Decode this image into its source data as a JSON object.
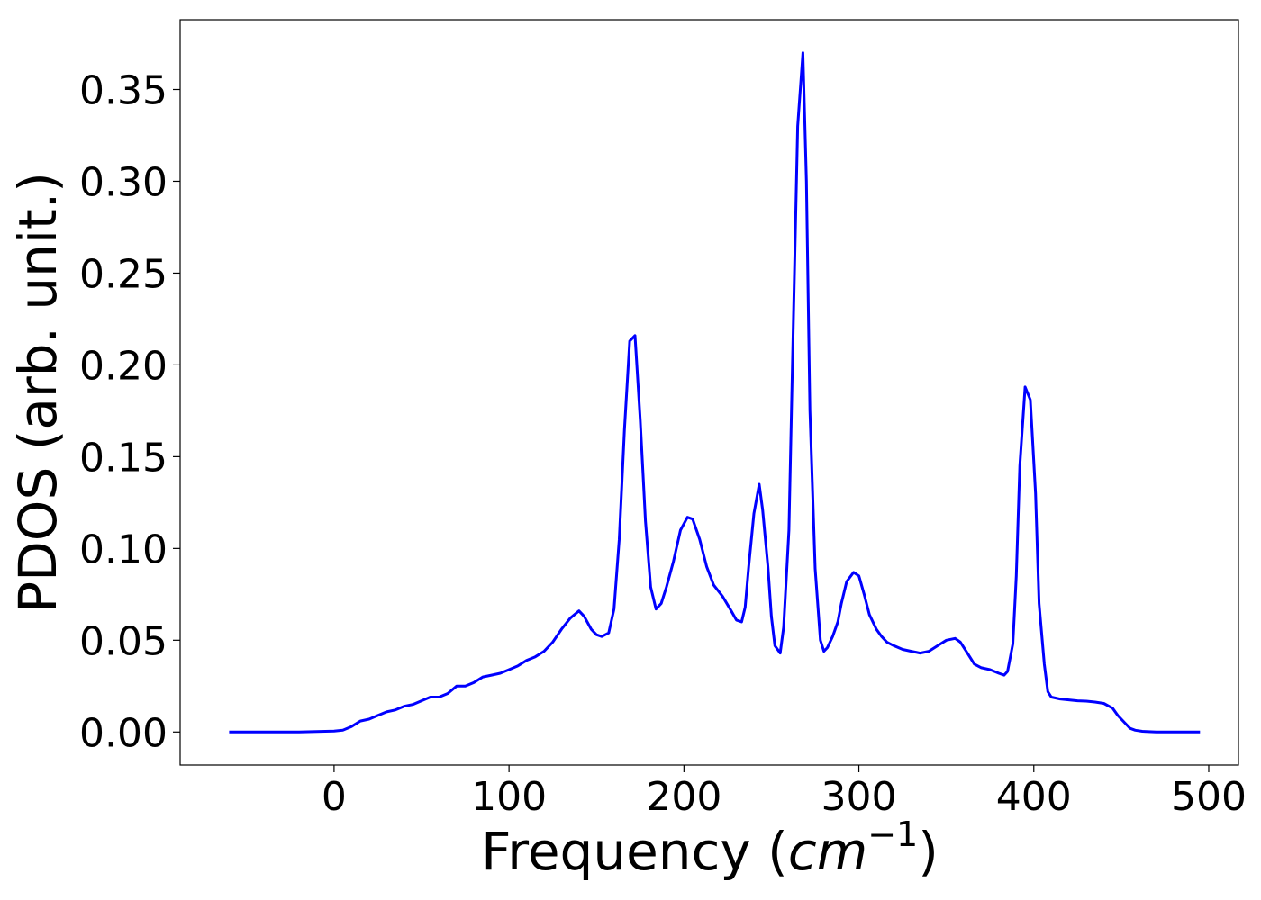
{
  "chart_data": {
    "type": "line",
    "xlabel": "Frequency (",
    "xlabel_math": "cm",
    "xlabel_exponent": "−1",
    "xlabel_close": ")",
    "ylabel": "PDOS (arb. unit.)",
    "xlim": [
      -88,
      517
    ],
    "ylim": [
      -0.018,
      0.388
    ],
    "grid": false,
    "line_color": "#0000ff",
    "x_ticks": [
      0,
      100,
      200,
      300,
      400,
      500
    ],
    "x_tick_labels": [
      "0",
      "100",
      "200",
      "300",
      "400",
      "500"
    ],
    "y_ticks": [
      0.0,
      0.05,
      0.1,
      0.15,
      0.2,
      0.25,
      0.3,
      0.35
    ],
    "y_tick_labels": [
      "0.00",
      "0.05",
      "0.10",
      "0.15",
      "0.20",
      "0.25",
      "0.30",
      "0.35"
    ],
    "series": [
      {
        "x": [
          -60,
          -40,
          -20,
          0,
          5,
          10,
          15,
          20,
          25,
          30,
          35,
          40,
          45,
          50,
          55,
          60,
          65,
          70,
          75,
          80,
          85,
          90,
          95,
          100,
          105,
          110,
          115,
          120,
          125,
          130,
          135,
          140,
          143,
          147,
          150,
          153,
          157,
          160,
          163,
          166,
          169,
          172,
          175,
          178,
          181,
          184,
          187,
          190,
          194,
          198,
          202,
          205,
          209,
          213,
          217,
          222,
          227,
          230,
          233,
          235,
          237,
          240,
          243,
          245,
          248,
          250,
          252,
          255,
          257,
          260,
          262,
          265,
          268,
          270,
          272,
          275,
          278,
          280,
          282,
          285,
          288,
          290,
          293,
          297,
          300,
          303,
          306,
          310,
          313,
          316,
          320,
          325,
          330,
          335,
          340,
          345,
          350,
          355,
          358,
          362,
          366,
          370,
          375,
          380,
          383,
          385,
          388,
          390,
          392,
          395,
          398,
          401,
          403,
          406,
          408,
          410,
          415,
          420,
          425,
          430,
          435,
          440,
          445,
          448,
          452,
          455,
          458,
          462,
          470,
          495
        ],
        "y": [
          0.0,
          0.0,
          0.0,
          0.0005,
          0.001,
          0.003,
          0.006,
          0.007,
          0.009,
          0.011,
          0.012,
          0.014,
          0.015,
          0.017,
          0.019,
          0.019,
          0.021,
          0.025,
          0.025,
          0.027,
          0.03,
          0.031,
          0.032,
          0.034,
          0.036,
          0.039,
          0.041,
          0.044,
          0.049,
          0.056,
          0.062,
          0.066,
          0.063,
          0.056,
          0.053,
          0.052,
          0.054,
          0.067,
          0.105,
          0.165,
          0.213,
          0.216,
          0.17,
          0.115,
          0.079,
          0.067,
          0.07,
          0.079,
          0.093,
          0.11,
          0.117,
          0.116,
          0.105,
          0.09,
          0.08,
          0.074,
          0.066,
          0.061,
          0.06,
          0.068,
          0.09,
          0.119,
          0.135,
          0.121,
          0.09,
          0.063,
          0.047,
          0.043,
          0.057,
          0.11,
          0.2,
          0.33,
          0.37,
          0.3,
          0.175,
          0.089,
          0.05,
          0.044,
          0.046,
          0.052,
          0.06,
          0.07,
          0.082,
          0.087,
          0.085,
          0.075,
          0.064,
          0.056,
          0.052,
          0.049,
          0.047,
          0.045,
          0.044,
          0.043,
          0.044,
          0.047,
          0.05,
          0.051,
          0.049,
          0.043,
          0.037,
          0.035,
          0.034,
          0.032,
          0.031,
          0.033,
          0.048,
          0.085,
          0.145,
          0.188,
          0.181,
          0.13,
          0.07,
          0.037,
          0.022,
          0.019,
          0.018,
          0.0175,
          0.017,
          0.0168,
          0.0163,
          0.0156,
          0.013,
          0.009,
          0.005,
          0.002,
          0.001,
          0.0004,
          0.0,
          0.0
        ]
      }
    ]
  }
}
